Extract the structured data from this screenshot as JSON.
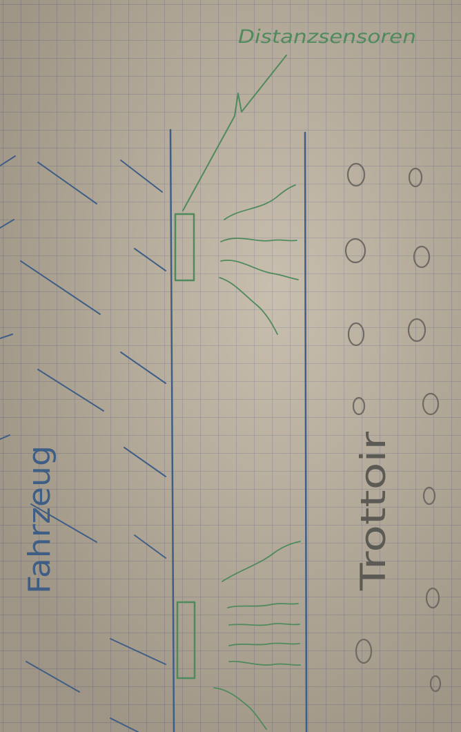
{
  "labels": {
    "vehicle": "Fahrzeug",
    "sidewalk": "Trottoir",
    "sensors": "Distanzsensoren"
  },
  "colors": {
    "paper": "#c2b6a3",
    "grid": "#7a7a8c",
    "blue_pen": "#3f5e86",
    "green_pen": "#4e8a5c",
    "pencil": "#6e6a63"
  }
}
